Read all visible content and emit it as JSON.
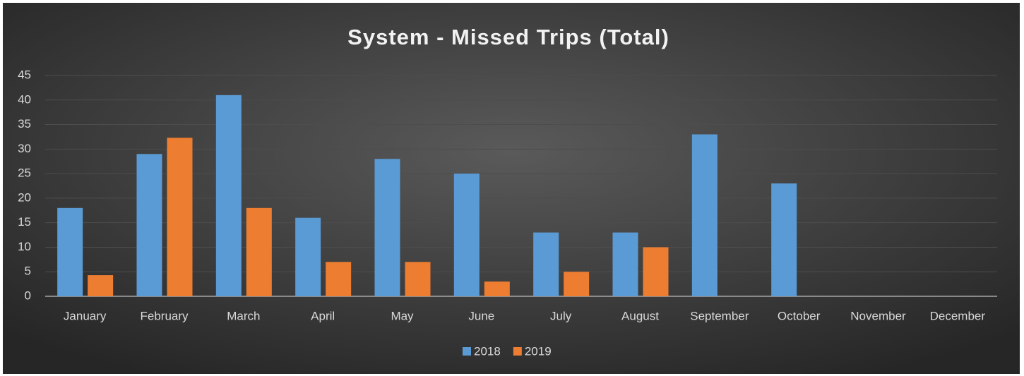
{
  "chart_data": {
    "type": "bar",
    "title": "System - Missed Trips (Total)",
    "categories": [
      "January",
      "February",
      "March",
      "April",
      "May",
      "June",
      "July",
      "August",
      "September",
      "October",
      "November",
      "December"
    ],
    "series": [
      {
        "name": "2018",
        "color": "#5b9bd5",
        "values": [
          18,
          29,
          41,
          16,
          28,
          25,
          13,
          13,
          33,
          23,
          null,
          null
        ]
      },
      {
        "name": "2019",
        "color": "#ed7d31",
        "values": [
          4.3,
          32.3,
          18,
          7,
          7,
          3,
          5,
          10,
          null,
          null,
          null,
          null
        ]
      }
    ],
    "ylim": [
      0,
      45
    ],
    "yticks": [
      0,
      5,
      10,
      15,
      20,
      25,
      30,
      35,
      40,
      45
    ],
    "grid": true,
    "legend": "bottom"
  }
}
